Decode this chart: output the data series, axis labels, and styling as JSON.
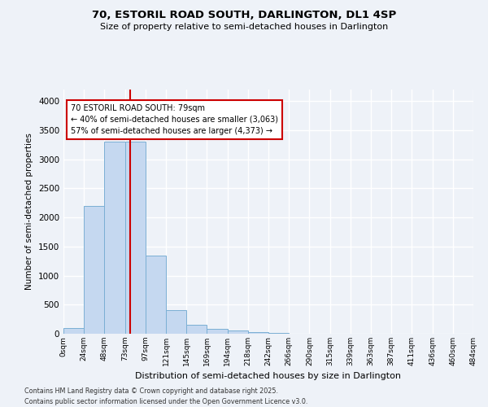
{
  "title1": "70, ESTORIL ROAD SOUTH, DARLINGTON, DL1 4SP",
  "title2": "Size of property relative to semi-detached houses in Darlington",
  "xlabel": "Distribution of semi-detached houses by size in Darlington",
  "ylabel": "Number of semi-detached properties",
  "bar_values": [
    100,
    2200,
    3300,
    3300,
    1350,
    410,
    155,
    90,
    55,
    35,
    15,
    5,
    0,
    0,
    0,
    0,
    0,
    0,
    0,
    0
  ],
  "bin_labels": [
    "0sqm",
    "24sqm",
    "48sqm",
    "73sqm",
    "97sqm",
    "121sqm",
    "145sqm",
    "169sqm",
    "194sqm",
    "218sqm",
    "242sqm",
    "266sqm",
    "290sqm",
    "315sqm",
    "339sqm",
    "363sqm",
    "387sqm",
    "411sqm",
    "436sqm",
    "460sqm",
    "484sqm"
  ],
  "bar_color": "#c5d8f0",
  "bar_edge_color": "#7bafd4",
  "property_line_x": 3.25,
  "annotation_text": "70 ESTORIL ROAD SOUTH: 79sqm\n← 40% of semi-detached houses are smaller (3,063)\n57% of semi-detached houses are larger (4,373) →",
  "annotation_box_color": "#ffffff",
  "annotation_box_edge_color": "#cc0000",
  "red_line_color": "#cc0000",
  "ylim": [
    0,
    4200
  ],
  "yticks": [
    0,
    500,
    1000,
    1500,
    2000,
    2500,
    3000,
    3500,
    4000
  ],
  "footnote1": "Contains HM Land Registry data © Crown copyright and database right 2025.",
  "footnote2": "Contains public sector information licensed under the Open Government Licence v3.0.",
  "bg_color": "#eef2f8",
  "grid_color": "#ffffff"
}
